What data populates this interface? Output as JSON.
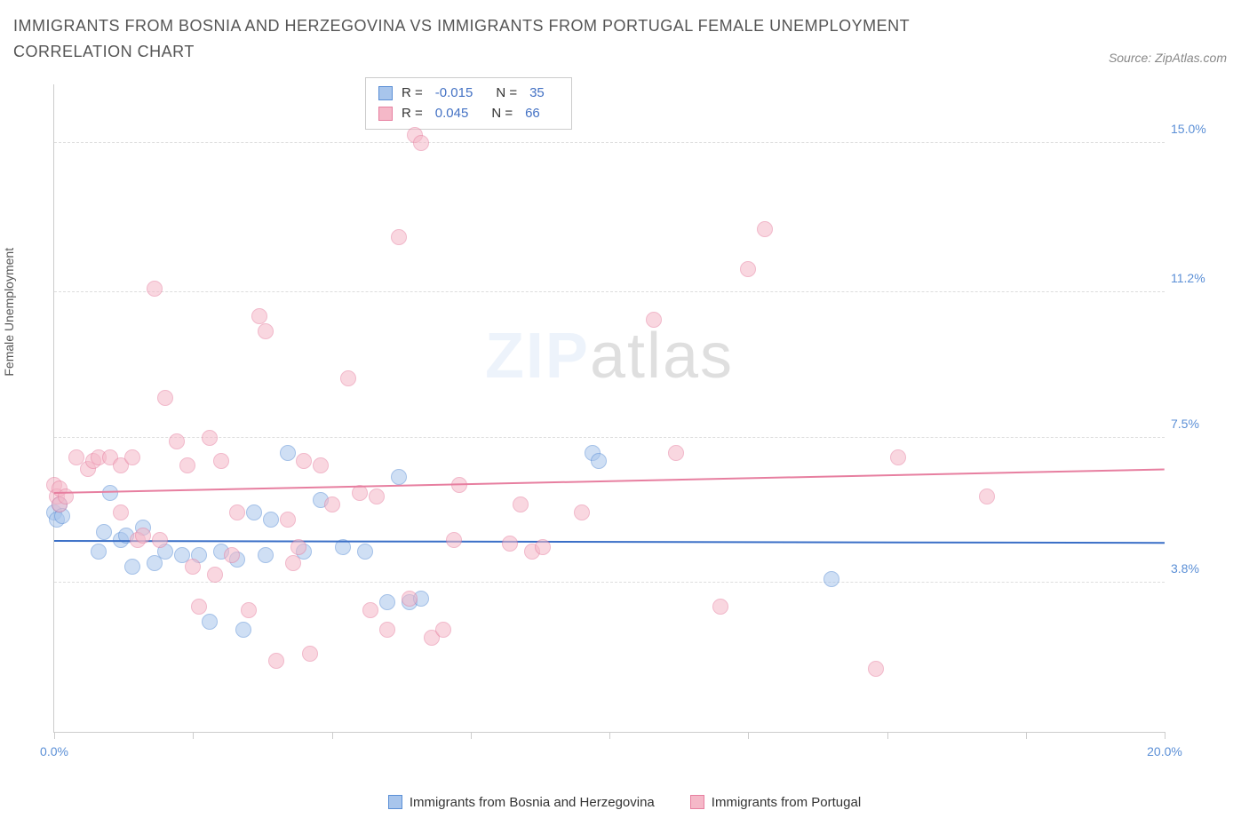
{
  "title": "IMMIGRANTS FROM BOSNIA AND HERZEGOVINA VS IMMIGRANTS FROM PORTUGAL FEMALE UNEMPLOYMENT CORRELATION CHART",
  "source_label": "Source: ZipAtlas.com",
  "ylabel": "Female Unemployment",
  "watermark_bold": "ZIP",
  "watermark_rest": "atlas",
  "chart": {
    "type": "scatter",
    "xlim": [
      0,
      20
    ],
    "ylim": [
      0,
      16.5
    ],
    "yticks": [
      {
        "v": 3.8,
        "label": "3.8%"
      },
      {
        "v": 7.5,
        "label": "7.5%"
      },
      {
        "v": 11.2,
        "label": "11.2%"
      },
      {
        "v": 15.0,
        "label": "15.0%"
      }
    ],
    "xticks": [
      0,
      2.5,
      5.0,
      7.5,
      10.0,
      12.5,
      15.0,
      17.5,
      20.0
    ],
    "xtick_labels": [
      {
        "v": 0,
        "label": "0.0%"
      },
      {
        "v": 20,
        "label": "20.0%"
      }
    ],
    "background_color": "#ffffff",
    "grid_color": "#dddddd",
    "axis_color": "#cccccc",
    "marker_radius": 9,
    "marker_opacity": 0.55,
    "series": [
      {
        "name": "Immigrants from Bosnia and Herzegovina",
        "color_fill": "#a8c5ec",
        "color_stroke": "#5b8fd6",
        "trend_color": "#3a6fc7",
        "R": "-0.015",
        "N": "35",
        "trend_y_start": 4.9,
        "trend_y_end": 4.85,
        "points": [
          [
            0.0,
            5.6
          ],
          [
            0.05,
            5.4
          ],
          [
            0.1,
            5.8
          ],
          [
            0.15,
            5.5
          ],
          [
            0.8,
            4.6
          ],
          [
            0.9,
            5.1
          ],
          [
            1.0,
            6.1
          ],
          [
            1.2,
            4.9
          ],
          [
            1.3,
            5.0
          ],
          [
            1.4,
            4.2
          ],
          [
            1.6,
            5.2
          ],
          [
            1.8,
            4.3
          ],
          [
            2.0,
            4.6
          ],
          [
            2.3,
            4.5
          ],
          [
            2.6,
            4.5
          ],
          [
            2.8,
            2.8
          ],
          [
            3.0,
            4.6
          ],
          [
            3.3,
            4.4
          ],
          [
            3.4,
            2.6
          ],
          [
            3.6,
            5.6
          ],
          [
            3.8,
            4.5
          ],
          [
            3.9,
            5.4
          ],
          [
            4.2,
            7.1
          ],
          [
            4.5,
            4.6
          ],
          [
            4.8,
            5.9
          ],
          [
            5.2,
            4.7
          ],
          [
            5.6,
            4.6
          ],
          [
            6.0,
            3.3
          ],
          [
            6.2,
            6.5
          ],
          [
            6.4,
            3.3
          ],
          [
            6.6,
            3.4
          ],
          [
            9.7,
            7.1
          ],
          [
            9.8,
            6.9
          ],
          [
            14.0,
            3.9
          ]
        ]
      },
      {
        "name": "Immigrants from Portugal",
        "color_fill": "#f5b8c8",
        "color_stroke": "#e77fa0",
        "trend_color": "#e77fa0",
        "R": "0.045",
        "N": "66",
        "trend_y_start": 6.1,
        "trend_y_end": 6.7,
        "points": [
          [
            0.0,
            6.3
          ],
          [
            0.05,
            6.0
          ],
          [
            0.1,
            6.2
          ],
          [
            0.1,
            5.8
          ],
          [
            0.2,
            6.0
          ],
          [
            0.4,
            7.0
          ],
          [
            0.6,
            6.7
          ],
          [
            0.7,
            6.9
          ],
          [
            0.8,
            7.0
          ],
          [
            1.0,
            7.0
          ],
          [
            1.2,
            6.8
          ],
          [
            1.2,
            5.6
          ],
          [
            1.4,
            7.0
          ],
          [
            1.5,
            4.9
          ],
          [
            1.6,
            5.0
          ],
          [
            1.8,
            11.3
          ],
          [
            1.9,
            4.9
          ],
          [
            2.0,
            8.5
          ],
          [
            2.2,
            7.4
          ],
          [
            2.4,
            6.8
          ],
          [
            2.5,
            4.2
          ],
          [
            2.6,
            3.2
          ],
          [
            2.8,
            7.5
          ],
          [
            2.9,
            4.0
          ],
          [
            3.0,
            6.9
          ],
          [
            3.2,
            4.5
          ],
          [
            3.3,
            5.6
          ],
          [
            3.5,
            3.1
          ],
          [
            3.7,
            10.6
          ],
          [
            3.8,
            10.2
          ],
          [
            4.0,
            1.8
          ],
          [
            4.2,
            5.4
          ],
          [
            4.3,
            4.3
          ],
          [
            4.4,
            4.7
          ],
          [
            4.5,
            6.9
          ],
          [
            4.6,
            2.0
          ],
          [
            4.8,
            6.8
          ],
          [
            5.0,
            5.8
          ],
          [
            5.3,
            9.0
          ],
          [
            5.5,
            6.1
          ],
          [
            5.7,
            3.1
          ],
          [
            5.8,
            6.0
          ],
          [
            6.0,
            2.6
          ],
          [
            6.2,
            12.6
          ],
          [
            6.4,
            3.4
          ],
          [
            6.5,
            15.2
          ],
          [
            6.6,
            15.0
          ],
          [
            6.8,
            2.4
          ],
          [
            7.0,
            2.6
          ],
          [
            7.2,
            4.9
          ],
          [
            7.3,
            6.3
          ],
          [
            8.2,
            4.8
          ],
          [
            8.4,
            5.8
          ],
          [
            8.6,
            4.6
          ],
          [
            8.8,
            4.7
          ],
          [
            9.5,
            5.6
          ],
          [
            10.8,
            10.5
          ],
          [
            11.2,
            7.1
          ],
          [
            12.0,
            3.2
          ],
          [
            12.5,
            11.8
          ],
          [
            12.8,
            12.8
          ],
          [
            14.8,
            1.6
          ],
          [
            15.2,
            7.0
          ],
          [
            16.8,
            6.0
          ]
        ]
      }
    ]
  },
  "legend_bottom": [
    {
      "label": "Immigrants from Bosnia and Herzegovina",
      "fill": "#a8c5ec",
      "stroke": "#5b8fd6"
    },
    {
      "label": "Immigrants from Portugal",
      "fill": "#f5b8c8",
      "stroke": "#e77fa0"
    }
  ]
}
